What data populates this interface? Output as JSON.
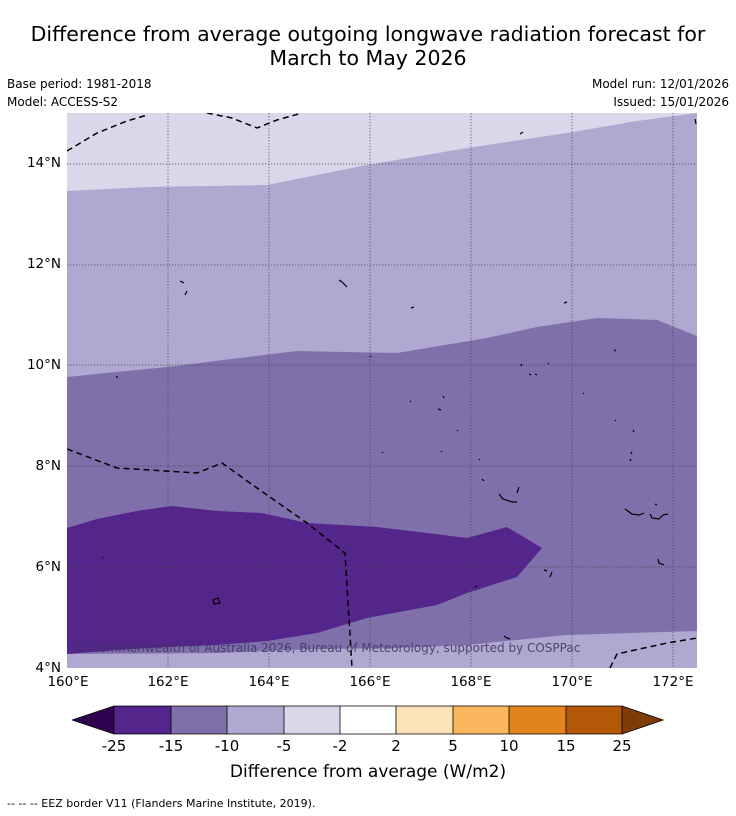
{
  "title": {
    "line1": "Difference from average outgoing longwave radiation forecast for",
    "line2": "March to May 2026"
  },
  "meta": {
    "base_period": "Base period: 1981-2018",
    "model": "Model: ACCESS-S2",
    "model_run": "Model run: 12/01/2026",
    "issued": "Issued: 15/01/2026"
  },
  "map": {
    "copyright": "© Commonwealth of Australia 2026, Bureau of Meteorology, supported by COSPPac",
    "lat_labels": [
      "14°N",
      "12°N",
      "10°N",
      "8°N",
      "6°N",
      "4°N"
    ],
    "lon_labels": [
      "160°E",
      "162°E",
      "164°E",
      "166°E",
      "168°E",
      "170°E",
      "172°E"
    ],
    "lon_range": [
      160,
      172.5
    ],
    "lat_range": [
      4,
      15
    ],
    "legend_colors": {
      "lt_-25": "#2f004f",
      "-25_-15": "#54258a",
      "-15_-10": "#7f70ab",
      "-10_-5": "#afa8d0",
      "-5_-2": "#d8d8ea",
      "-2_2": "#ffffff",
      "2_5": "#fde1b8",
      "5_10": "#fbb65e",
      "10_15": "#e2841b",
      "15_25": "#b35806",
      "gt_25": "#7f3b08"
    }
  },
  "colorbar": {
    "ticks": [
      "-25",
      "-15",
      "-10",
      "-5",
      "-2",
      "2",
      "5",
      "10",
      "15",
      "25"
    ],
    "label": "Difference from average (W/m2)"
  },
  "footnote": "--  --  -- EEZ border V11 (Flanders Marine Institute, 2019)."
}
